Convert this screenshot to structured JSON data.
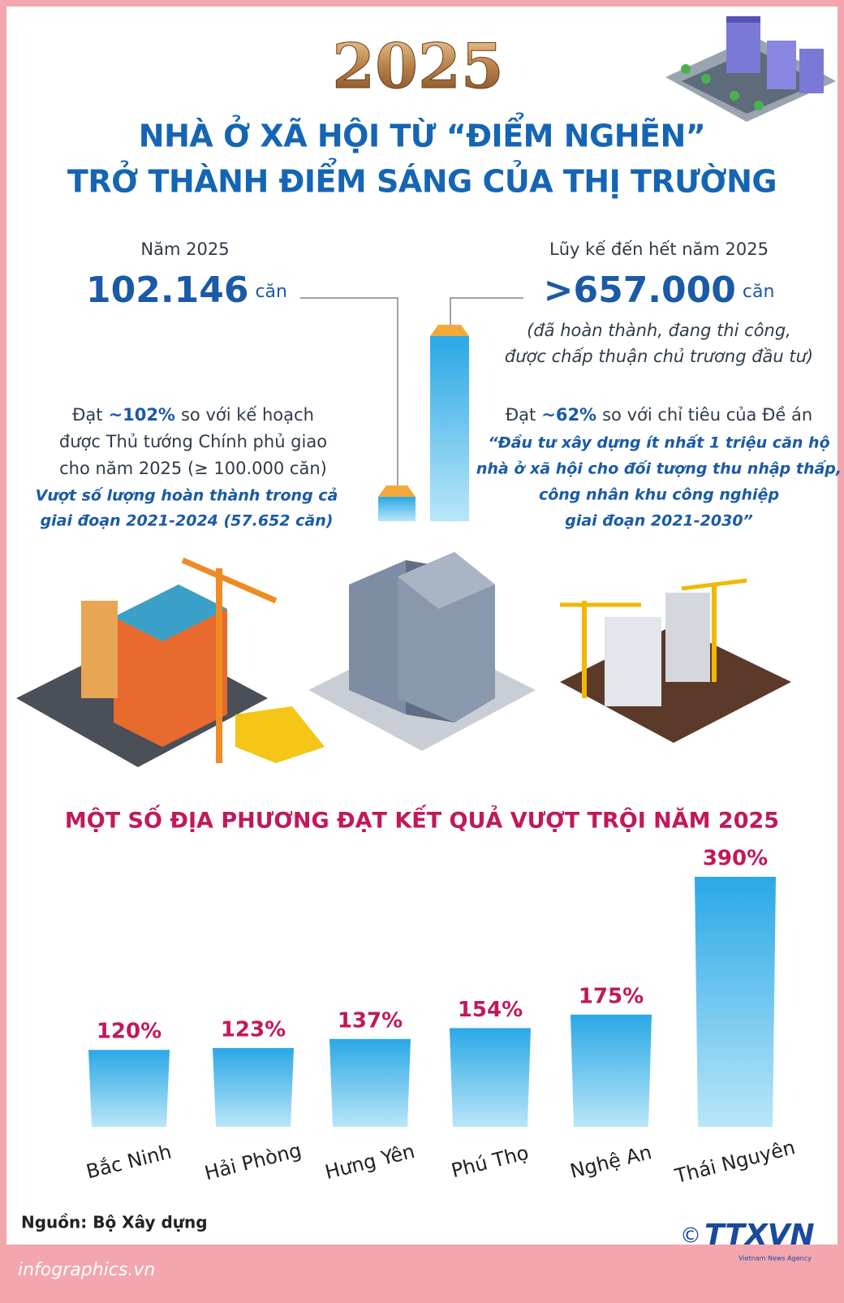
{
  "header": {
    "year": "2025",
    "title_line1": "NHÀ Ở XÃ HỘI TỪ “ĐIỂM NGHẼN”",
    "title_line2": "TRỞ THÀNH ĐIỂM SÁNG CỦA THỊ TRƯỜNG"
  },
  "left": {
    "label": "Năm 2025",
    "value": "102.146",
    "unit": "căn",
    "line1": [
      "Đạt",
      "~102%",
      "so với kế hoạch"
    ],
    "lines": [
      "được Thủ tướng Chính phủ giao",
      "cho năm 2025 (≥ 100.000 căn)"
    ],
    "emphasis": [
      "Vượt số lượng hoàn thành trong cả",
      "giai đoạn 2021-2024 (57.652 căn)"
    ]
  },
  "right": {
    "label": "Lũy kế đến hết năm 2025",
    "value": ">657.000",
    "unit": "căn",
    "note": [
      "(đã hoàn thành, đang thi công,",
      "được chấp thuận chủ trương đầu tư)"
    ],
    "line1": [
      "Đạt",
      "~62%",
      "so với chỉ tiêu của Đề án"
    ],
    "emphasis": [
      "“Đầu tư xây dựng ít nhất 1 triệu căn hộ",
      "nhà ở xã hội cho đối tượng thu nhập thấp,",
      "công nhân khu công nghiệp",
      "giai đoạn 2021-2030”"
    ]
  },
  "chart_data": {
    "type": "bar",
    "title": "MỘT SỐ ĐỊA PHƯƠNG ĐẠT KẾT QUẢ VƯỢT TRỘI NĂM 2025",
    "categories": [
      "Bắc Ninh",
      "Hải Phòng",
      "Hưng Yên",
      "Phú Thọ",
      "Nghệ An",
      "Thái Nguyên"
    ],
    "values": [
      120,
      123,
      137,
      154,
      175,
      390
    ],
    "value_labels": [
      "120%",
      "123%",
      "137%",
      "154%",
      "175%",
      "390%"
    ],
    "color": "#3fb2e8"
  },
  "footer": {
    "source": "Nguồn: Bộ Xây dựng",
    "site": "infographics.vn",
    "copyright": "©",
    "logo": "TTXVN",
    "logo_sub": "Vietnam News Agency"
  }
}
